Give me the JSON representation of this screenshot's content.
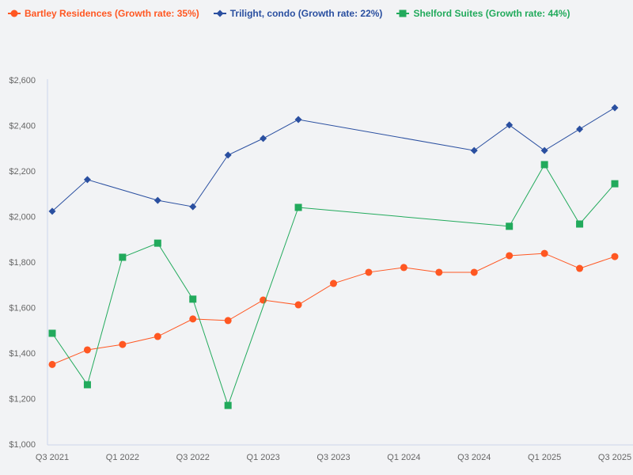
{
  "chart_data": {
    "type": "line",
    "categories": [
      "Q3 2021",
      "Q4 2021",
      "Q1 2022",
      "Q2 2022",
      "Q3 2022",
      "Q4 2022",
      "Q1 2023",
      "Q2 2023",
      "Q3 2023",
      "Q4 2023",
      "Q1 2024",
      "Q2 2024",
      "Q3 2024",
      "Q4 2024",
      "Q1 2025",
      "Q2 2025",
      "Q3 2025"
    ],
    "x_tick_labels": [
      "Q3 2021",
      "Q1 2022",
      "Q3 2022",
      "Q1 2023",
      "Q3 2023",
      "Q1 2024",
      "Q3 2024",
      "Q1 2025",
      "Q3 2025"
    ],
    "y_tick_labels": [
      "$1,000",
      "$1,200",
      "$1,400",
      "$1,600",
      "$1,800",
      "$2,000",
      "$2,200",
      "$2,400",
      "$2,600"
    ],
    "ylim": [
      1000,
      2600
    ],
    "yticks": [
      1000,
      1200,
      1400,
      1600,
      1800,
      2000,
      2200,
      2400,
      2600
    ],
    "grid": false,
    "legend_position": "top-left",
    "series": [
      {
        "name": "Bartley Residences (Growth rate: 35%)",
        "color": "#ff5722",
        "marker": "circle",
        "values": [
          1350,
          1414,
          1438,
          1473,
          1550,
          1543,
          1633,
          1612,
          1706,
          1755,
          1776,
          1755,
          1755,
          1828,
          1838,
          1772,
          1824
        ]
      },
      {
        "name": "Trilight, condo (Growth rate: 22%)",
        "color": "#2a4fa0",
        "marker": "diamond",
        "values": [
          2023,
          2162,
          null,
          2071,
          2043,
          2270,
          2343,
          2426,
          null,
          null,
          null,
          null,
          2290,
          2402,
          2290,
          2384,
          2478
        ]
      },
      {
        "name": "Shelford Suites (Growth rate: 44%)",
        "color": "#22aa5c",
        "marker": "square",
        "values": [
          1487,
          1261,
          1821,
          1883,
          1637,
          1170,
          null,
          2040,
          null,
          null,
          null,
          null,
          null,
          1957,
          2228,
          1967,
          2144
        ]
      }
    ]
  }
}
